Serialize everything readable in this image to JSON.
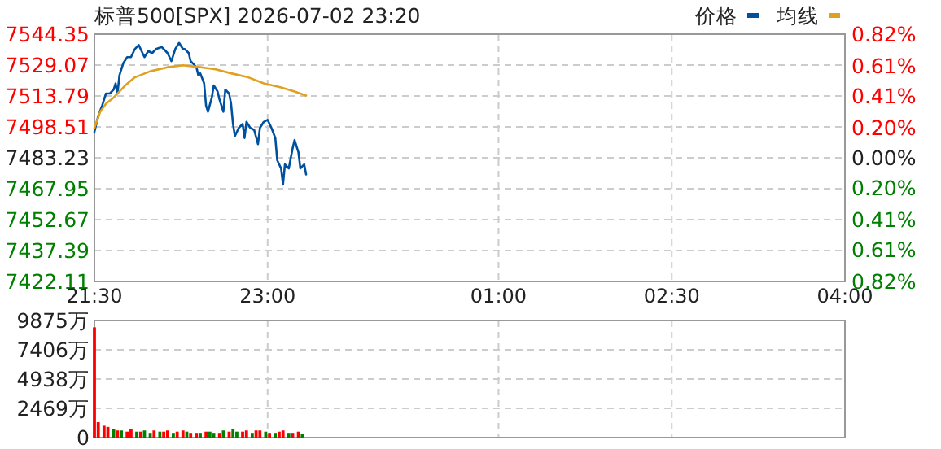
{
  "chart_data": [
    {
      "type": "line",
      "title": "标普500[SPX] 2026-07-02 23:20",
      "xlim": [
        "2026-07-02T21:30",
        "2026-07-03T04:00"
      ],
      "xticks": [
        {
          "value": "2026-07-02T21:30",
          "label": "21:30"
        },
        {
          "value": "2026-07-02T23:00",
          "label": "23:00"
        },
        {
          "value": "2026-07-03T01:00",
          "label": "01:00"
        },
        {
          "value": "2026-07-03T02:30",
          "label": "02:30"
        },
        {
          "value": "2026-07-03T04:00",
          "label": "04:00"
        }
      ],
      "ylim": [
        7422.11,
        7544.35
      ],
      "yticks": [
        7422.11,
        7437.39,
        7452.67,
        7467.95,
        7483.23,
        7498.51,
        7513.79,
        7529.07,
        7544.35
      ],
      "y2lim": [
        -0.82,
        0.82
      ],
      "y2ticks": [
        {
          "value": -0.82,
          "label": "0.82%"
        },
        {
          "value": -0.61,
          "label": "0.61%"
        },
        {
          "value": -0.41,
          "label": "0.41%"
        },
        {
          "value": -0.2,
          "label": "0.20%"
        },
        {
          "value": 0,
          "label": "0.00%"
        },
        {
          "value": 0.2,
          "label": "0.20%"
        },
        {
          "value": 0.41,
          "label": "0.41%"
        },
        {
          "value": 0.61,
          "label": "0.61%"
        },
        {
          "value": 0.82,
          "label": "0.82%"
        }
      ],
      "grid": true,
      "legend": "top right",
      "series": [
        {
          "name": "价格",
          "color": "#0050a0",
          "x": [
            "2026-07-02T21:30",
            "2026-07-02T21:32",
            "2026-07-02T21:34",
            "2026-07-02T21:36",
            "2026-07-02T21:38",
            "2026-07-02T21:40",
            "2026-07-02T21:41",
            "2026-07-02T21:42",
            "2026-07-02T21:43",
            "2026-07-02T21:45",
            "2026-07-02T21:47",
            "2026-07-02T21:49",
            "2026-07-02T21:51",
            "2026-07-02T21:53",
            "2026-07-02T21:55",
            "2026-07-02T21:56",
            "2026-07-02T21:58",
            "2026-07-02T22:00",
            "2026-07-02T22:02",
            "2026-07-02T22:05",
            "2026-07-02T22:07",
            "2026-07-02T22:08",
            "2026-07-02T22:10",
            "2026-07-02T22:12",
            "2026-07-02T22:14",
            "2026-07-02T22:16",
            "2026-07-02T22:17",
            "2026-07-02T22:19",
            "2026-07-02T22:20",
            "2026-07-02T22:23",
            "2026-07-02T22:24",
            "2026-07-02T22:25",
            "2026-07-02T22:27",
            "2026-07-02T22:28",
            "2026-07-02T22:29",
            "2026-07-02T22:31",
            "2026-07-02T22:32",
            "2026-07-02T22:34",
            "2026-07-02T22:35",
            "2026-07-02T22:37",
            "2026-07-02T22:38",
            "2026-07-02T22:40",
            "2026-07-02T22:41",
            "2026-07-02T22:42",
            "2026-07-02T22:43",
            "2026-07-02T22:45",
            "2026-07-02T22:47",
            "2026-07-02T22:48",
            "2026-07-02T22:49",
            "2026-07-02T22:51",
            "2026-07-02T22:53",
            "2026-07-02T22:55",
            "2026-07-02T22:56",
            "2026-07-02T22:58",
            "2026-07-02T23:00",
            "2026-07-02T23:02",
            "2026-07-02T23:04",
            "2026-07-02T23:05",
            "2026-07-02T23:07",
            "2026-07-02T23:08",
            "2026-07-02T23:09",
            "2026-07-02T23:11",
            "2026-07-02T23:13",
            "2026-07-02T23:14",
            "2026-07-02T23:16",
            "2026-07-02T23:17",
            "2026-07-02T23:19",
            "2026-07-02T23:20"
          ],
          "values": [
            7496,
            7504,
            7509,
            7515,
            7515,
            7517,
            7520,
            7515,
            7524,
            7530,
            7533,
            7533,
            7537,
            7539,
            7535,
            7533,
            7536,
            7535,
            7537,
            7538,
            7536,
            7535,
            7531,
            7537,
            7540,
            7537,
            7537,
            7535,
            7531,
            7528,
            7524,
            7525,
            7520,
            7509,
            7506,
            7513,
            7519,
            7516,
            7512,
            7506,
            7517,
            7515,
            7510,
            7500,
            7494,
            7498,
            7500,
            7493,
            7501,
            7498,
            7497,
            7490,
            7498,
            7501,
            7502,
            7498,
            7493,
            7482,
            7478,
            7470,
            7480,
            7478,
            7488,
            7492,
            7486,
            7478,
            7480,
            7475
          ]
        },
        {
          "name": "均线",
          "color": "#e0a020",
          "x": [
            "2026-07-02T21:30",
            "2026-07-02T21:33",
            "2026-07-02T21:36",
            "2026-07-02T21:40",
            "2026-07-02T21:46",
            "2026-07-02T21:51",
            "2026-07-02T21:59",
            "2026-07-02T22:08",
            "2026-07-02T22:16",
            "2026-07-02T22:25",
            "2026-07-02T22:33",
            "2026-07-02T22:41",
            "2026-07-02T22:50",
            "2026-07-02T22:58",
            "2026-07-02T23:07",
            "2026-07-02T23:14",
            "2026-07-02T23:20"
          ],
          "values": [
            7498,
            7506,
            7510,
            7513,
            7519,
            7523,
            7526,
            7528,
            7529,
            7528,
            7527,
            7525,
            7523,
            7520,
            7518,
            7516,
            7514
          ]
        }
      ]
    },
    {
      "type": "bar",
      "xlim": [
        "2026-07-02T21:30",
        "2026-07-03T04:00"
      ],
      "xticks": [
        {
          "value": "2026-07-02T21:30",
          "label": null
        },
        {
          "value": "2026-07-02T23:00",
          "label": null
        },
        {
          "value": "2026-07-03T01:00",
          "label": null
        },
        {
          "value": "2026-07-03T02:30",
          "label": null
        },
        {
          "value": "2026-07-03T04:00",
          "label": null
        }
      ],
      "tick_labels": "y",
      "ylim": [
        0,
        9875
      ],
      "yticks": [
        0,
        {
          "value": 2469,
          "label": "2469万"
        },
        {
          "value": 4938,
          "label": "4938万"
        },
        {
          "value": 7406,
          "label": "7406万"
        },
        {
          "value": 9875,
          "label": "9875万"
        }
      ],
      "grid": true,
      "x": [
        "2026-07-02T21:30",
        "2026-07-02T21:32",
        "2026-07-02T21:35",
        "2026-07-02T21:37",
        "2026-07-02T21:40",
        "2026-07-02T21:42",
        "2026-07-02T21:44",
        "2026-07-02T21:47",
        "2026-07-02T21:49",
        "2026-07-02T21:52",
        "2026-07-02T21:54",
        "2026-07-02T21:56",
        "2026-07-02T21:59",
        "2026-07-02T22:01",
        "2026-07-02T22:04",
        "2026-07-02T22:06",
        "2026-07-02T22:08",
        "2026-07-02T22:11",
        "2026-07-02T22:13",
        "2026-07-02T22:16",
        "2026-07-02T22:18",
        "2026-07-02T22:20",
        "2026-07-02T22:23",
        "2026-07-02T22:25",
        "2026-07-02T22:28",
        "2026-07-02T22:30",
        "2026-07-02T22:32",
        "2026-07-02T22:35",
        "2026-07-02T22:37",
        "2026-07-02T22:40",
        "2026-07-02T22:42",
        "2026-07-02T22:44",
        "2026-07-02T22:47",
        "2026-07-02T22:49",
        "2026-07-02T22:52",
        "2026-07-02T22:54",
        "2026-07-02T22:56",
        "2026-07-02T22:59",
        "2026-07-02T23:01",
        "2026-07-02T23:04",
        "2026-07-02T23:06",
        "2026-07-02T23:08",
        "2026-07-02T23:11",
        "2026-07-02T23:13",
        "2026-07-02T23:16",
        "2026-07-02T23:18"
      ],
      "values": [
        9300,
        1300,
        1000,
        900,
        700,
        600,
        600,
        500,
        700,
        500,
        500,
        600,
        400,
        600,
        500,
        500,
        600,
        400,
        500,
        600,
        500,
        400,
        400,
        400,
        500,
        500,
        400,
        400,
        600,
        500,
        700,
        500,
        500,
        600,
        400,
        600,
        600,
        500,
        400,
        400,
        500,
        600,
        400,
        400,
        500,
        300
      ],
      "colors": [
        "#ff0000",
        "#ff0000",
        "#ff0000",
        "#ff0000",
        "#008000",
        "#ff0000",
        "#008000",
        "#ff0000",
        "#ff0000",
        "#008000",
        "#ff0000",
        "#008000",
        "#008000",
        "#ff0000",
        "#008000",
        "#ff0000",
        "#ff0000",
        "#008000",
        "#ff0000",
        "#ff0000",
        "#008000",
        "#ff0000",
        "#ff0000",
        "#008000",
        "#ff0000",
        "#008000",
        "#008000",
        "#ff0000",
        "#008000",
        "#ff0000",
        "#008000",
        "#008000",
        "#ff0000",
        "#ff0000",
        "#008000",
        "#ff0000",
        "#ff0000",
        "#008000",
        "#ff0000",
        "#008000",
        "#ff0000",
        "#ff0000",
        "#008000",
        "#ff0000",
        "#ff0000",
        "#008000"
      ]
    }
  ]
}
